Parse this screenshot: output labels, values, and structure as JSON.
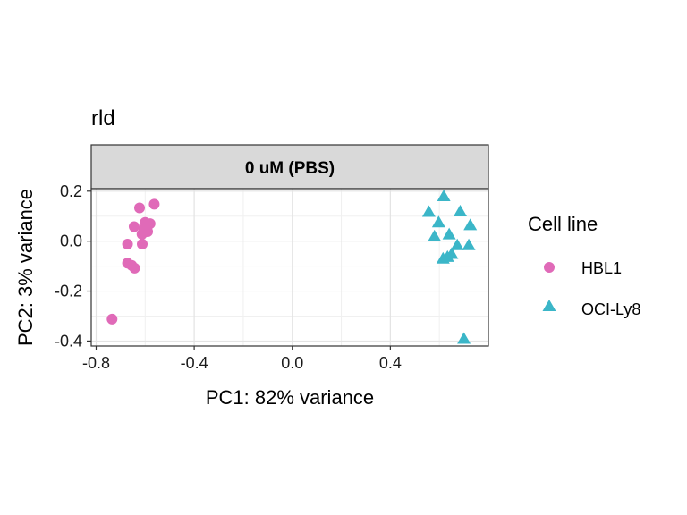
{
  "chart_data": {
    "type": "scatter",
    "title": "rld",
    "facet_label": "0 uM (PBS)",
    "xlabel": "PC1: 82% variance",
    "ylabel": "PC2: 3% variance",
    "xlim": [
      -0.82,
      0.8
    ],
    "ylim": [
      -0.42,
      0.21
    ],
    "x_ticks": [
      -0.8,
      -0.4,
      0.0,
      0.4
    ],
    "x_tick_labels": [
      "-0.8",
      "-0.4",
      "0.0",
      "0.4"
    ],
    "y_ticks": [
      0.2,
      0.0,
      -0.2,
      -0.4
    ],
    "y_tick_labels": [
      "0.2",
      "0.0",
      "-0.2",
      "-0.4"
    ],
    "grid": true,
    "legend": {
      "title": "Cell line",
      "position": "right",
      "entries": [
        "HBL1",
        "OCI-Ly8"
      ]
    },
    "series": [
      {
        "name": "HBL1",
        "marker": "circle",
        "color": "#E06AB8",
        "points": [
          [
            -0.563,
            0.148
          ],
          [
            -0.623,
            0.133
          ],
          [
            -0.6,
            0.075
          ],
          [
            -0.58,
            0.07
          ],
          [
            -0.645,
            0.058
          ],
          [
            -0.605,
            0.047
          ],
          [
            -0.59,
            0.038
          ],
          [
            -0.613,
            0.028
          ],
          [
            -0.672,
            -0.012
          ],
          [
            -0.612,
            -0.012
          ],
          [
            -0.672,
            -0.088
          ],
          [
            -0.655,
            -0.097
          ],
          [
            -0.643,
            -0.108
          ],
          [
            -0.735,
            -0.312
          ]
        ]
      },
      {
        "name": "OCI-Ly8",
        "marker": "triangle",
        "color": "#3BB6C8",
        "points": [
          [
            0.618,
            0.178
          ],
          [
            0.557,
            0.115
          ],
          [
            0.685,
            0.117
          ],
          [
            0.597,
            0.073
          ],
          [
            0.726,
            0.062
          ],
          [
            0.64,
            0.025
          ],
          [
            0.58,
            0.017
          ],
          [
            0.673,
            -0.018
          ],
          [
            0.72,
            -0.018
          ],
          [
            0.65,
            -0.053
          ],
          [
            0.633,
            -0.065
          ],
          [
            0.615,
            -0.072
          ],
          [
            0.7,
            -0.393
          ]
        ]
      }
    ]
  }
}
